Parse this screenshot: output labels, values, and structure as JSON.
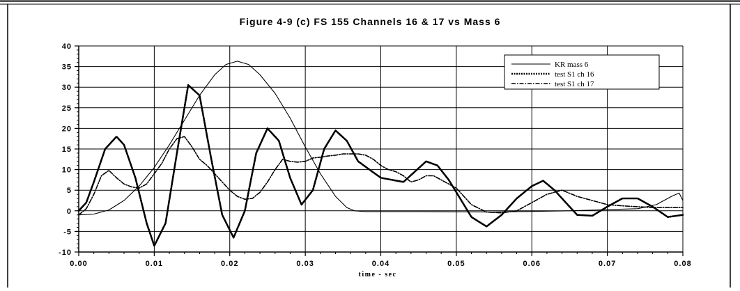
{
  "chart_data": {
    "type": "line",
    "title": "Figure 4-9 (c)  FS 155 Channels 16 & 17 vs Mass 6",
    "xlabel": "time - sec",
    "ylabel": "",
    "xlim": [
      0,
      0.08
    ],
    "ylim": [
      -10,
      40
    ],
    "x_ticks": [
      0,
      0.01,
      0.02,
      0.03,
      0.04,
      0.05,
      0.06,
      0.07,
      0.08
    ],
    "x_tick_labels": [
      "0.00",
      "0.01",
      "0.02",
      "0.03",
      "0.04",
      "0.05",
      "0.06",
      "0.07",
      "0.08"
    ],
    "y_ticks": [
      -10,
      -5,
      0,
      5,
      10,
      15,
      20,
      25,
      30,
      35,
      40
    ],
    "y_tick_labels": [
      "-10",
      "-5",
      "0",
      "5",
      "10",
      "15",
      "20",
      "25",
      "30",
      "35",
      "40"
    ],
    "grid": "major vertical lines at x ticks; horizontal lines every 5 units",
    "legend_position": "top-right",
    "series": [
      {
        "name": "KR mass 6",
        "style": "solid-thin",
        "color": "#000000",
        "x": [
          0,
          0.002,
          0.004,
          0.006,
          0.008,
          0.01,
          0.012,
          0.014,
          0.016,
          0.018,
          0.0195,
          0.021,
          0.0225,
          0.024,
          0.026,
          0.028,
          0.03,
          0.032,
          0.034,
          0.0355,
          0.0365,
          0.038,
          0.045,
          0.055,
          0.065,
          0.074,
          0.0765,
          0.0785,
          0.0795,
          0.08
        ],
        "y": [
          -1,
          -0.8,
          0.2,
          2.5,
          6,
          10.5,
          16,
          22,
          28,
          33,
          35.5,
          36.3,
          35.5,
          33,
          28.5,
          22.5,
          15.5,
          9,
          3.5,
          0.8,
          0,
          -0.2,
          -0.2,
          -0.3,
          0,
          0.5,
          1.5,
          3.5,
          4.3,
          2.5
        ]
      },
      {
        "name": "test S1 ch 16",
        "style": "dotted-thick",
        "color": "#000000",
        "x": [
          0,
          0.001,
          0.002,
          0.0035,
          0.005,
          0.006,
          0.0075,
          0.009,
          0.01,
          0.0115,
          0.013,
          0.0145,
          0.016,
          0.0175,
          0.019,
          0.0205,
          0.022,
          0.0235,
          0.025,
          0.0265,
          0.028,
          0.0295,
          0.031,
          0.0325,
          0.034,
          0.0355,
          0.037,
          0.0385,
          0.04,
          0.0415,
          0.043,
          0.0445,
          0.046,
          0.0475,
          0.049,
          0.0505,
          0.052,
          0.054,
          0.056,
          0.058,
          0.06,
          0.0615,
          0.063,
          0.0645,
          0.066,
          0.068,
          0.07,
          0.072,
          0.074,
          0.076,
          0.078,
          0.08
        ],
        "y": [
          0,
          2,
          7,
          15,
          18,
          16,
          8,
          -3,
          -8.5,
          -3,
          14,
          30.5,
          28,
          13,
          -1,
          -6.5,
          0,
          14,
          20,
          17,
          8,
          1.5,
          5,
          15,
          19.5,
          17,
          12,
          10,
          8,
          7.5,
          7,
          9.5,
          12,
          11,
          7.5,
          3,
          -1.5,
          -3.8,
          -1,
          3,
          6,
          7.3,
          5,
          2,
          -1,
          -1.2,
          1,
          3,
          3,
          1,
          -1.5,
          -1
        ]
      },
      {
        "name": "test S1 ch 17",
        "style": "dash-dot",
        "color": "#000000",
        "x": [
          0,
          0.001,
          0.002,
          0.003,
          0.004,
          0.005,
          0.006,
          0.007,
          0.008,
          0.009,
          0.01,
          0.011,
          0.012,
          0.013,
          0.014,
          0.015,
          0.016,
          0.017,
          0.018,
          0.019,
          0.02,
          0.021,
          0.022,
          0.023,
          0.024,
          0.025,
          0.026,
          0.027,
          0.028,
          0.029,
          0.03,
          0.031,
          0.032,
          0.033,
          0.034,
          0.035,
          0.036,
          0.037,
          0.038,
          0.039,
          0.04,
          0.041,
          0.042,
          0.043,
          0.044,
          0.045,
          0.046,
          0.047,
          0.048,
          0.049,
          0.05,
          0.052,
          0.054,
          0.056,
          0.058,
          0.06,
          0.062,
          0.064,
          0.066,
          0.068,
          0.07,
          0.072,
          0.074,
          0.076,
          0.078,
          0.08
        ],
        "y": [
          -1,
          0.5,
          4,
          8.5,
          9.8,
          8,
          6.5,
          5.8,
          5.5,
          6.5,
          9,
          11.5,
          15,
          17.5,
          18,
          15.5,
          12.5,
          11,
          9,
          7,
          5,
          3.5,
          2.8,
          3,
          4.5,
          7,
          10,
          12.5,
          12,
          11.8,
          12,
          12.8,
          13,
          13.3,
          13.5,
          13.8,
          13.8,
          13.8,
          13.5,
          12.5,
          11,
          10,
          9.5,
          8.5,
          7,
          7.5,
          8.5,
          8.5,
          7.5,
          6.5,
          5.5,
          1.5,
          -0.3,
          -0.5,
          0,
          2,
          4,
          5,
          3.5,
          2.5,
          1.5,
          1.2,
          1,
          0.8,
          0.8,
          0.8
        ]
      }
    ]
  }
}
